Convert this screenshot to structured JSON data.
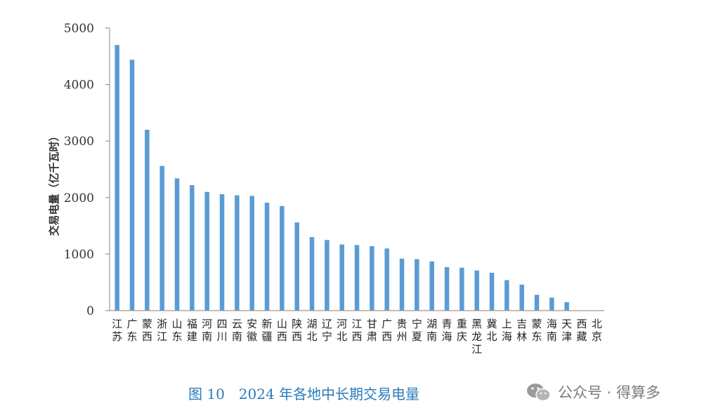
{
  "chart_data": {
    "type": "bar",
    "title": "",
    "xlabel": "",
    "ylabel": "交易电量（亿千瓦时）",
    "ylim": [
      0,
      5000
    ],
    "yticks": [
      0,
      1000,
      2000,
      3000,
      4000,
      5000
    ],
    "grid": false,
    "bar_color": "#5b9bd5",
    "categories": [
      "江苏",
      "广东",
      "蒙西",
      "浙江",
      "山东",
      "福建",
      "河南",
      "四川",
      "云南",
      "安徽",
      "新疆",
      "山西",
      "陕西",
      "湖北",
      "辽宁",
      "河北",
      "江西",
      "甘肃",
      "广西",
      "贵州",
      "宁夏",
      "湖南",
      "青海",
      "重庆",
      "黑龙江",
      "冀北",
      "上海",
      "吉林",
      "蒙东",
      "海南",
      "天津",
      "西藏",
      "北京"
    ],
    "values": [
      4700,
      4440,
      3200,
      2560,
      2340,
      2220,
      2100,
      2060,
      2040,
      2030,
      1910,
      1850,
      1560,
      1300,
      1250,
      1170,
      1160,
      1140,
      1100,
      920,
      910,
      870,
      770,
      760,
      710,
      670,
      540,
      460,
      280,
      230,
      150,
      0,
      0
    ]
  },
  "caption": "图 10　2024 年各地中长期交易电量",
  "watermark": {
    "text": "公众号 · 得算多",
    "icon": "wechat-icon"
  }
}
